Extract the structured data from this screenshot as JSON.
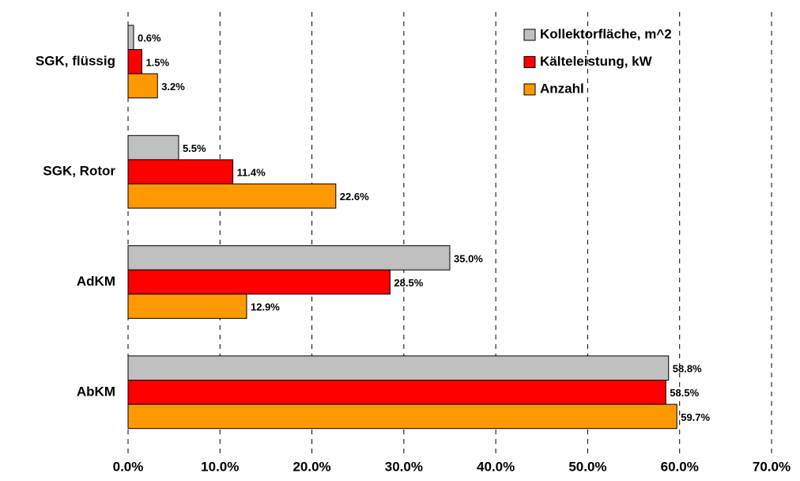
{
  "chart_data": {
    "type": "hbar",
    "categories": [
      "SGK, flüssig",
      "SGK, Rotor",
      "AdKM",
      "AbKM"
    ],
    "series": [
      {
        "name": "Kollektorfläche, m^2",
        "color": "#c0c0c0",
        "values": [
          0.6,
          5.5,
          35.0,
          58.8
        ],
        "value_labels": [
          "0.6%",
          "5.5%",
          "35.0%",
          "58.8%"
        ]
      },
      {
        "name": "Kälteleistung, kW",
        "color": "#ff0000",
        "values": [
          1.5,
          11.4,
          28.5,
          58.5
        ],
        "value_labels": [
          "1.5%",
          "11.4%",
          "28.5%",
          "58.5%"
        ]
      },
      {
        "name": "Anzahl",
        "color": "#ff9900",
        "values": [
          3.2,
          22.6,
          12.9,
          59.7
        ],
        "value_labels": [
          "3.2%",
          "22.6%",
          "12.9%",
          "59.7%"
        ]
      }
    ],
    "xlim": [
      0,
      70
    ],
    "xticks": [
      {
        "value": 0,
        "label": "0.0%"
      },
      {
        "value": 10,
        "label": "10.0%"
      },
      {
        "value": 20,
        "label": "20.0%"
      },
      {
        "value": 30,
        "label": "30.0%"
      },
      {
        "value": 40,
        "label": "40.0%"
      },
      {
        "value": 50,
        "label": "50.0%"
      },
      {
        "value": 60,
        "label": "60.0%"
      },
      {
        "value": 70,
        "label": "70.0%"
      }
    ],
    "grid": true,
    "legend": "top-right"
  }
}
